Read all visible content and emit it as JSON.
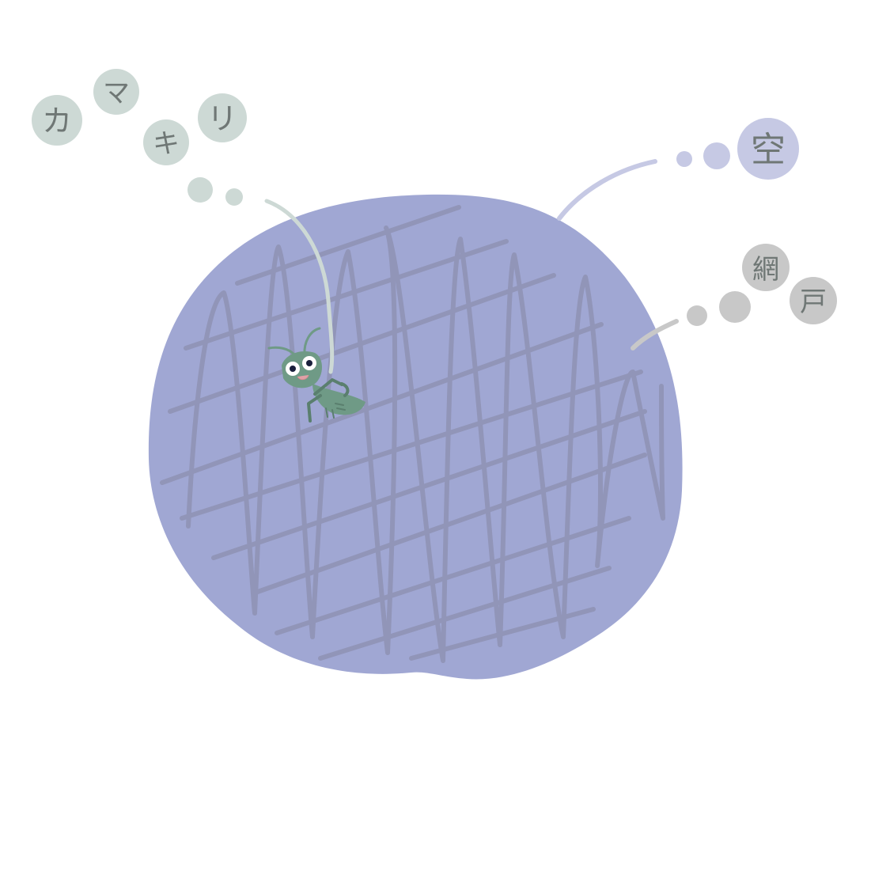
{
  "labels": {
    "mantis": [
      "カ",
      "マ",
      "キ",
      "リ"
    ],
    "sky": "空",
    "screen": [
      "網",
      "戸"
    ]
  },
  "colors": {
    "sky_disc": "#a0a7d3",
    "mesh_lines": "#8c8fb0",
    "mantis_bubble": "#cdd9d5",
    "sky_bubble": "#c6c9e4",
    "screen_bubble": "#c8c8c8",
    "mantis_body": "#6f9a86",
    "label_text": "#6f7775"
  }
}
